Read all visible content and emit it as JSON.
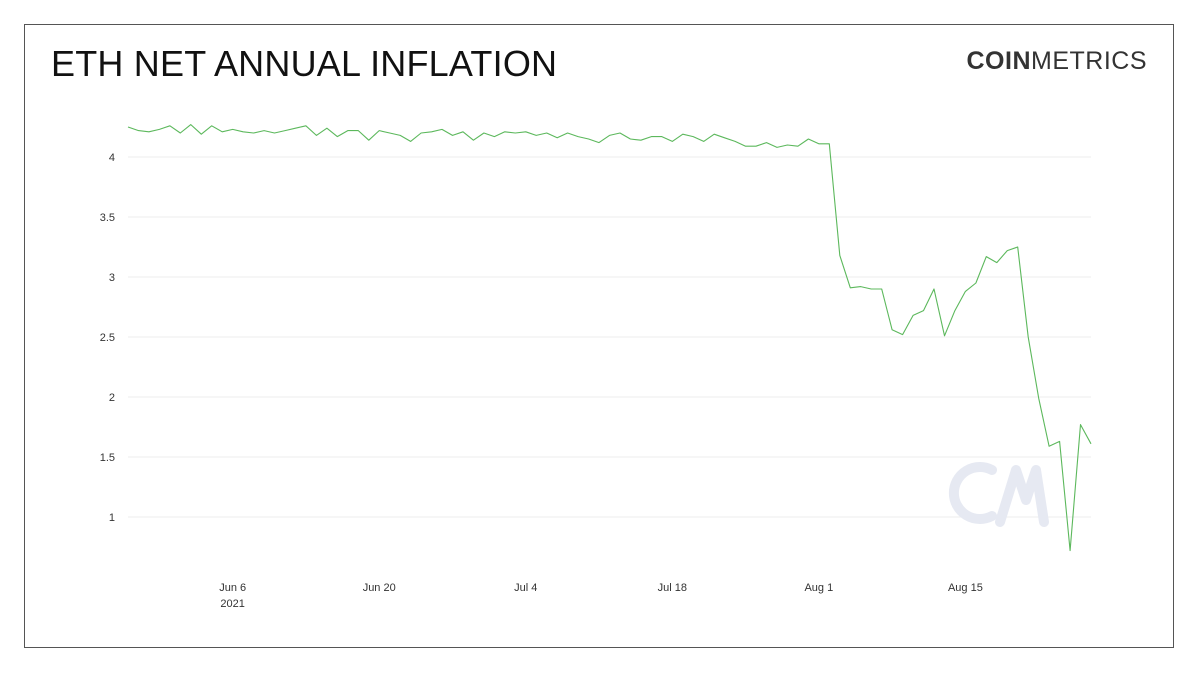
{
  "header": {
    "title": "ETH NET ANNUAL INFLATION",
    "brand_bold": "COIN",
    "brand_light": "METRICS",
    "watermark": "CM"
  },
  "chart_data": {
    "type": "line",
    "title": "ETH NET ANNUAL INFLATION",
    "xlabel": "",
    "ylabel": "",
    "x_start": "2021-05-27",
    "x_ticks": [
      {
        "date": "2021-06-06",
        "label": "Jun 6",
        "sublabel": "2021"
      },
      {
        "date": "2021-06-20",
        "label": "Jun 20",
        "sublabel": ""
      },
      {
        "date": "2021-07-04",
        "label": "Jul 4",
        "sublabel": ""
      },
      {
        "date": "2021-07-18",
        "label": "Jul 18",
        "sublabel": ""
      },
      {
        "date": "2021-08-01",
        "label": "Aug 1",
        "sublabel": ""
      },
      {
        "date": "2021-08-15",
        "label": "Aug 15",
        "sublabel": ""
      }
    ],
    "y_ticks": [
      {
        "value": 1,
        "label": "1"
      },
      {
        "value": 1.5,
        "label": "1.5"
      },
      {
        "value": 2,
        "label": "2"
      },
      {
        "value": 2.5,
        "label": "2.5"
      },
      {
        "value": 3,
        "label": "3"
      },
      {
        "value": 3.5,
        "label": "3.5"
      },
      {
        "value": 4,
        "label": "4"
      }
    ],
    "grid": true,
    "line_color": "#5cb85c",
    "series": [
      {
        "name": "",
        "values": [
          4.25,
          4.22,
          4.21,
          4.23,
          4.26,
          4.2,
          4.27,
          4.19,
          4.26,
          4.21,
          4.23,
          4.21,
          4.2,
          4.22,
          4.2,
          4.22,
          4.24,
          4.26,
          4.18,
          4.24,
          4.17,
          4.22,
          4.22,
          4.14,
          4.22,
          4.2,
          4.18,
          4.13,
          4.2,
          4.21,
          4.23,
          4.18,
          4.21,
          4.14,
          4.2,
          4.17,
          4.21,
          4.2,
          4.21,
          4.18,
          4.2,
          4.16,
          4.2,
          4.17,
          4.15,
          4.12,
          4.18,
          4.2,
          4.15,
          4.14,
          4.17,
          4.17,
          4.13,
          4.19,
          4.17,
          4.13,
          4.19,
          4.16,
          4.13,
          4.09,
          4.09,
          4.12,
          4.08,
          4.1,
          4.09,
          4.15,
          4.11,
          4.11,
          3.18,
          2.91,
          2.92,
          2.9,
          2.9,
          2.56,
          2.52,
          2.68,
          2.72,
          2.9,
          2.51,
          2.72,
          2.88,
          2.95,
          3.17,
          3.12,
          3.22,
          3.25,
          2.5,
          1.99,
          1.59,
          1.63,
          0.72,
          1.77,
          1.61
        ]
      }
    ]
  }
}
